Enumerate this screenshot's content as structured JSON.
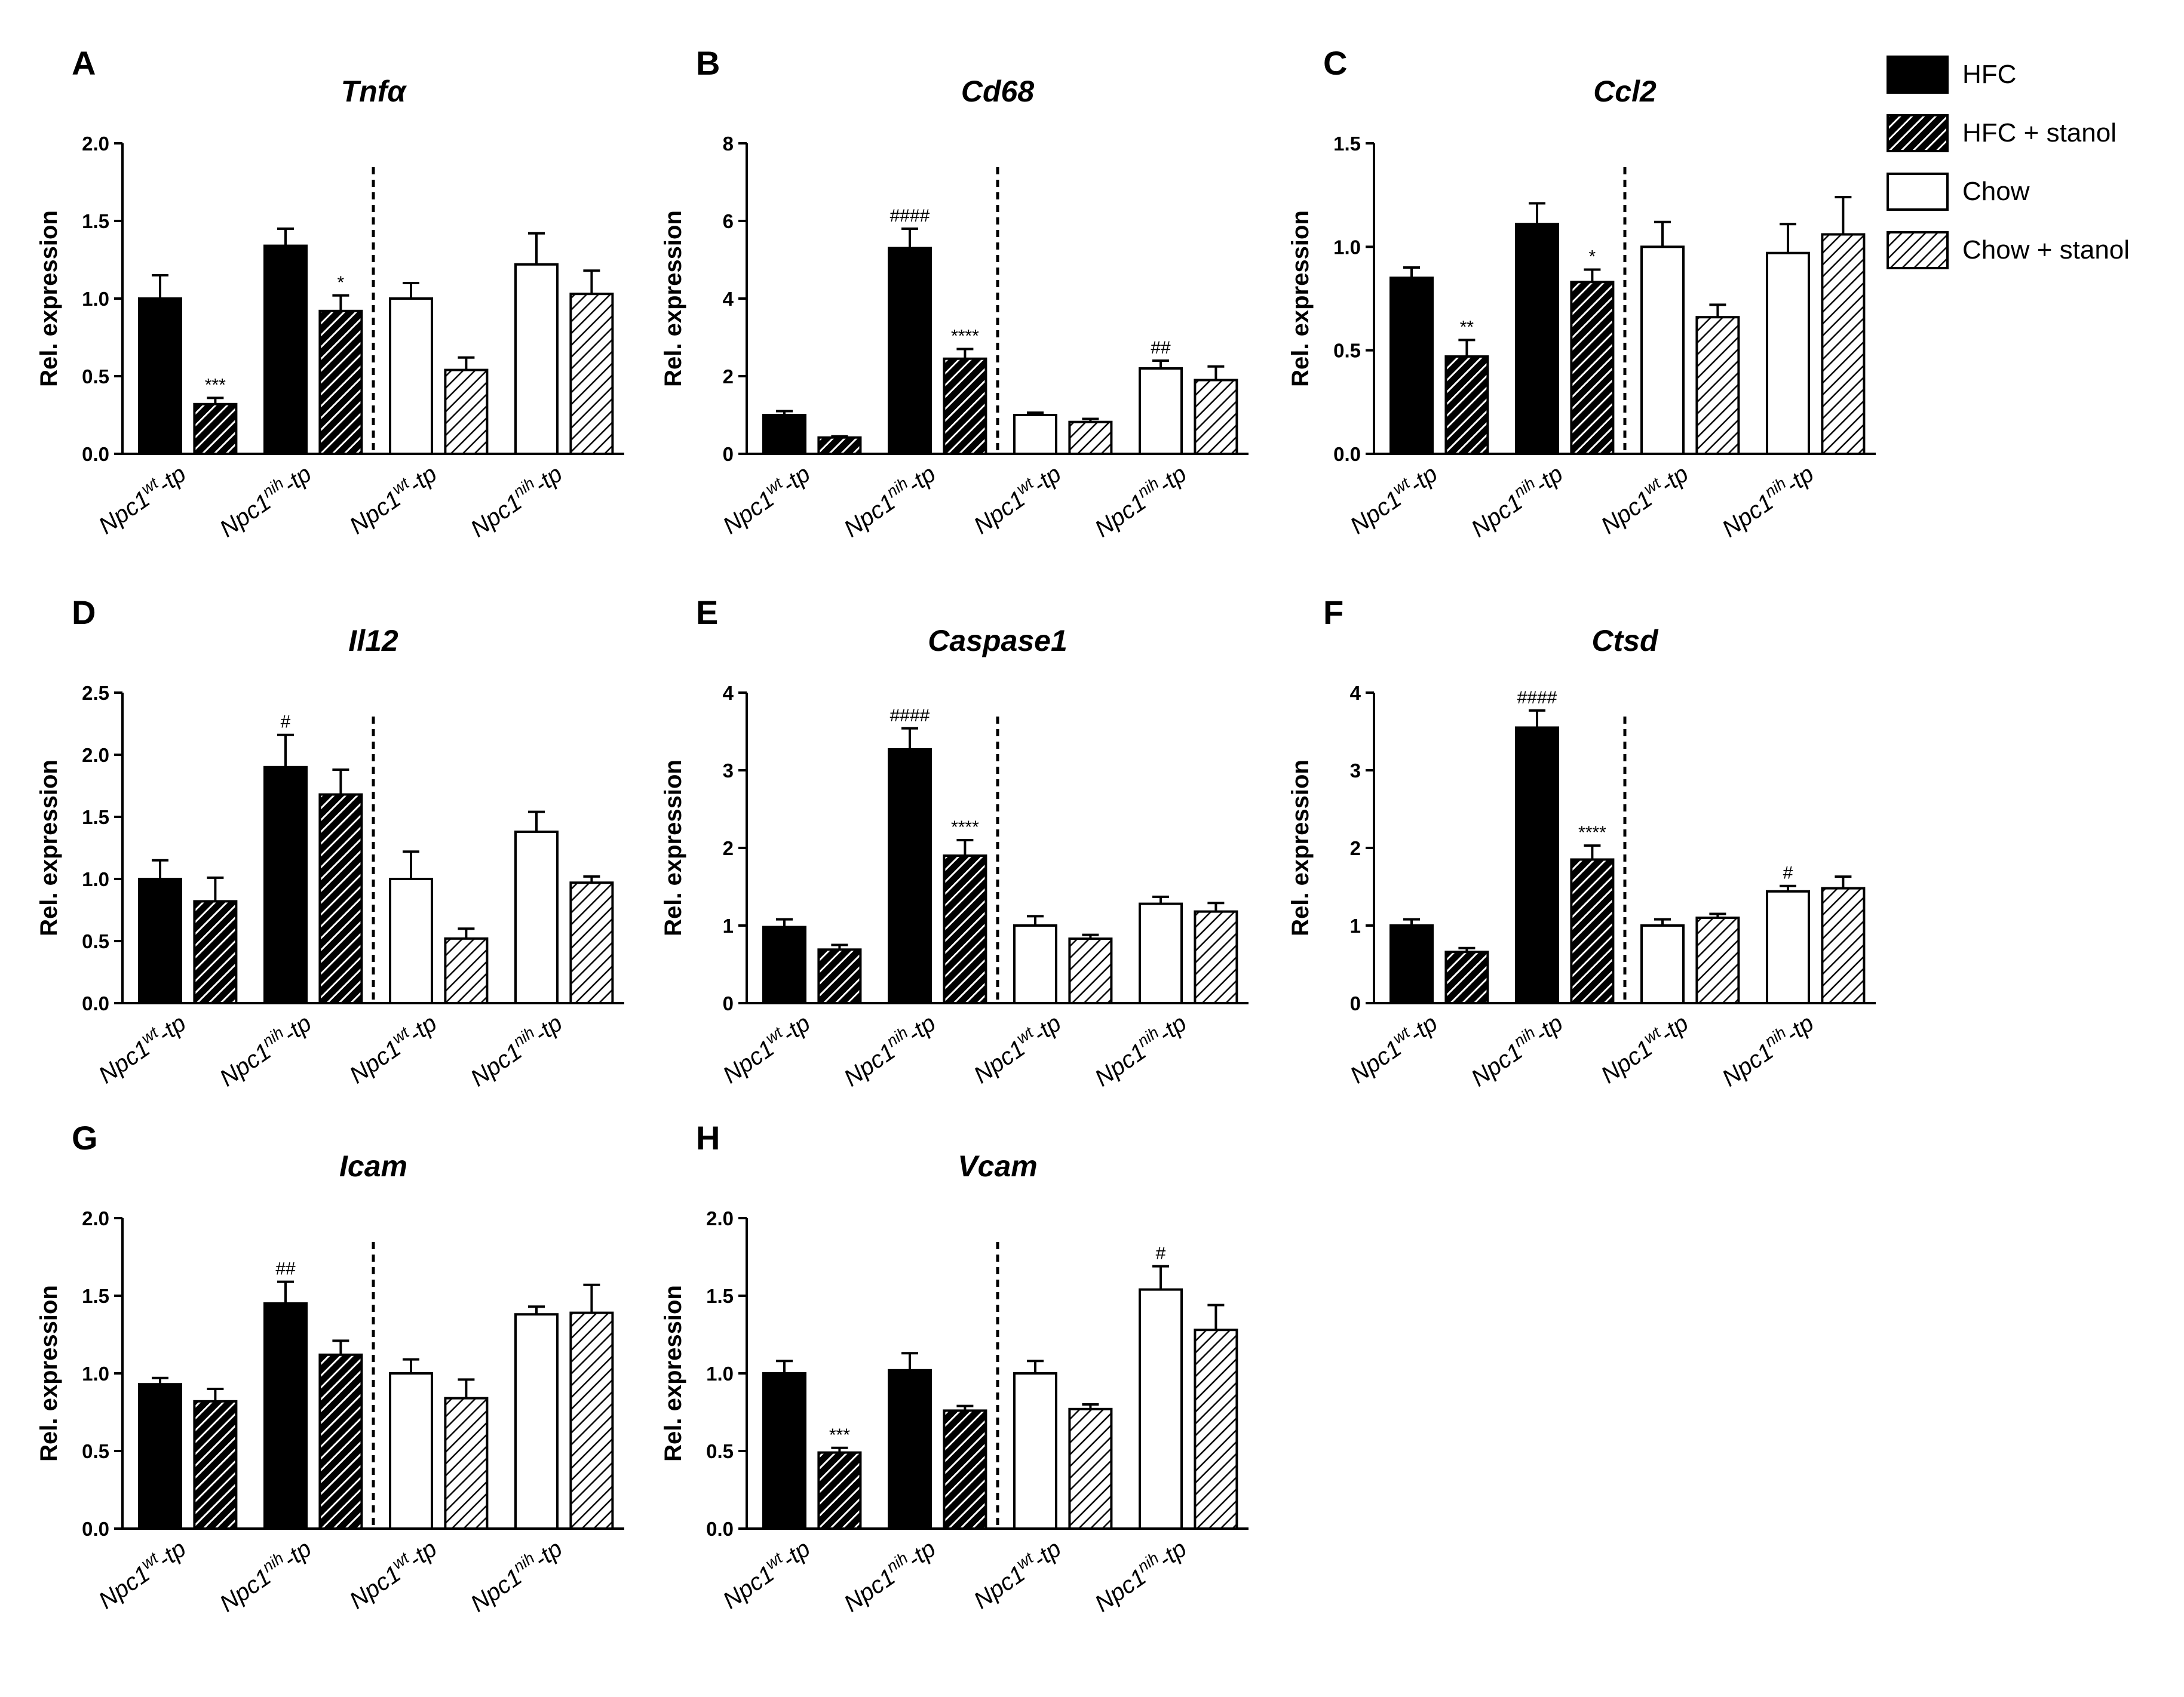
{
  "figure": {
    "legend": [
      {
        "key": "hfc",
        "label": "HFC"
      },
      {
        "key": "hfc_stanol",
        "label": "HFC + stanol"
      },
      {
        "key": "chow",
        "label": "Chow"
      },
      {
        "key": "chow_stanol",
        "label": "Chow + stanol"
      }
    ],
    "colors": {
      "black": "#000000",
      "white": "#ffffff"
    }
  },
  "chart_data": [
    {
      "type": "bar",
      "panel": "A",
      "title": "Tnfα",
      "ylabel": "Rel. expression",
      "categories": [
        {
          "base": "Npc1",
          "sup": "wt",
          "tail": "-tp"
        },
        {
          "base": "Npc1",
          "sup": "nih",
          "tail": "-tp"
        },
        {
          "base": "Npc1",
          "sup": "wt",
          "tail": "-tp"
        },
        {
          "base": "Npc1",
          "sup": "nih",
          "tail": "-tp"
        }
      ],
      "ylim": [
        0,
        2.0
      ],
      "yticks": [
        "0.0",
        "0.5",
        "1.0",
        "1.5",
        "2.0"
      ],
      "bars": [
        {
          "group": 0,
          "series": "HFC",
          "value": 1.0,
          "error": 0.15,
          "sig": ""
        },
        {
          "group": 0,
          "series": "HFC + stanol",
          "value": 0.32,
          "error": 0.04,
          "sig": "***"
        },
        {
          "group": 1,
          "series": "HFC",
          "value": 1.34,
          "error": 0.11,
          "sig": ""
        },
        {
          "group": 1,
          "series": "HFC + stanol",
          "value": 0.92,
          "error": 0.1,
          "sig": "*"
        },
        {
          "group": 2,
          "series": "Chow",
          "value": 1.0,
          "error": 0.1,
          "sig": ""
        },
        {
          "group": 2,
          "series": "Chow + stanol",
          "value": 0.54,
          "error": 0.08,
          "sig": ""
        },
        {
          "group": 3,
          "series": "Chow",
          "value": 1.22,
          "error": 0.2,
          "sig": ""
        },
        {
          "group": 3,
          "series": "Chow + stanol",
          "value": 1.03,
          "error": 0.15,
          "sig": ""
        }
      ]
    },
    {
      "type": "bar",
      "panel": "B",
      "title": "Cd68",
      "ylabel": "Rel. expression",
      "categories": [
        {
          "base": "Npc1",
          "sup": "wt",
          "tail": "-tp"
        },
        {
          "base": "Npc1",
          "sup": "nih",
          "tail": "-tp"
        },
        {
          "base": "Npc1",
          "sup": "wt",
          "tail": "-tp"
        },
        {
          "base": "Npc1",
          "sup": "nih",
          "tail": "-tp"
        }
      ],
      "ylim": [
        0,
        8
      ],
      "yticks": [
        "0",
        "2",
        "4",
        "6",
        "8"
      ],
      "bars": [
        {
          "group": 0,
          "series": "HFC",
          "value": 1.0,
          "error": 0.1,
          "sig": ""
        },
        {
          "group": 0,
          "series": "HFC + stanol",
          "value": 0.42,
          "error": 0.03,
          "sig": ""
        },
        {
          "group": 1,
          "series": "HFC",
          "value": 5.3,
          "error": 0.5,
          "sig": "####"
        },
        {
          "group": 1,
          "series": "HFC + stanol",
          "value": 2.45,
          "error": 0.25,
          "sig": "****"
        },
        {
          "group": 2,
          "series": "Chow",
          "value": 1.0,
          "error": 0.06,
          "sig": ""
        },
        {
          "group": 2,
          "series": "Chow + stanol",
          "value": 0.82,
          "error": 0.08,
          "sig": ""
        },
        {
          "group": 3,
          "series": "Chow",
          "value": 2.2,
          "error": 0.2,
          "sig": "##"
        },
        {
          "group": 3,
          "series": "Chow + stanol",
          "value": 1.9,
          "error": 0.35,
          "sig": ""
        }
      ]
    },
    {
      "type": "bar",
      "panel": "C",
      "title": "Ccl2",
      "ylabel": "Rel. expression",
      "categories": [
        {
          "base": "Npc1",
          "sup": "wt",
          "tail": "-tp"
        },
        {
          "base": "Npc1",
          "sup": "nih",
          "tail": "-tp"
        },
        {
          "base": "Npc1",
          "sup": "wt",
          "tail": "-tp"
        },
        {
          "base": "Npc1",
          "sup": "nih",
          "tail": "-tp"
        }
      ],
      "ylim": [
        0,
        1.5
      ],
      "yticks": [
        "0.0",
        "0.5",
        "1.0",
        "1.5"
      ],
      "bars": [
        {
          "group": 0,
          "series": "HFC",
          "value": 0.85,
          "error": 0.05,
          "sig": ""
        },
        {
          "group": 0,
          "series": "HFC + stanol",
          "value": 0.47,
          "error": 0.08,
          "sig": "**"
        },
        {
          "group": 1,
          "series": "HFC",
          "value": 1.11,
          "error": 0.1,
          "sig": ""
        },
        {
          "group": 1,
          "series": "HFC + stanol",
          "value": 0.83,
          "error": 0.06,
          "sig": "*"
        },
        {
          "group": 2,
          "series": "Chow",
          "value": 1.0,
          "error": 0.12,
          "sig": ""
        },
        {
          "group": 2,
          "series": "Chow + stanol",
          "value": 0.66,
          "error": 0.06,
          "sig": ""
        },
        {
          "group": 3,
          "series": "Chow",
          "value": 0.97,
          "error": 0.14,
          "sig": ""
        },
        {
          "group": 3,
          "series": "Chow + stanol",
          "value": 1.06,
          "error": 0.18,
          "sig": ""
        }
      ]
    },
    {
      "type": "bar",
      "panel": "D",
      "title": "Il12",
      "ylabel": "Rel. expression",
      "categories": [
        {
          "base": "Npc1",
          "sup": "wt",
          "tail": "-tp"
        },
        {
          "base": "Npc1",
          "sup": "nih",
          "tail": "-tp"
        },
        {
          "base": "Npc1",
          "sup": "wt",
          "tail": "-tp"
        },
        {
          "base": "Npc1",
          "sup": "nih",
          "tail": "-tp"
        }
      ],
      "ylim": [
        0,
        2.5
      ],
      "yticks": [
        "0.0",
        "0.5",
        "1.0",
        "1.5",
        "2.0",
        "2.5"
      ],
      "bars": [
        {
          "group": 0,
          "series": "HFC",
          "value": 1.0,
          "error": 0.15,
          "sig": ""
        },
        {
          "group": 0,
          "series": "HFC + stanol",
          "value": 0.82,
          "error": 0.19,
          "sig": ""
        },
        {
          "group": 1,
          "series": "HFC",
          "value": 1.9,
          "error": 0.26,
          "sig": "#"
        },
        {
          "group": 1,
          "series": "HFC + stanol",
          "value": 1.68,
          "error": 0.2,
          "sig": ""
        },
        {
          "group": 2,
          "series": "Chow",
          "value": 1.0,
          "error": 0.22,
          "sig": ""
        },
        {
          "group": 2,
          "series": "Chow + stanol",
          "value": 0.52,
          "error": 0.08,
          "sig": ""
        },
        {
          "group": 3,
          "series": "Chow",
          "value": 1.38,
          "error": 0.16,
          "sig": ""
        },
        {
          "group": 3,
          "series": "Chow + stanol",
          "value": 0.97,
          "error": 0.05,
          "sig": ""
        }
      ]
    },
    {
      "type": "bar",
      "panel": "E",
      "title": "Caspase1",
      "ylabel": "Rel. expression",
      "categories": [
        {
          "base": "Npc1",
          "sup": "wt",
          "tail": "-tp"
        },
        {
          "base": "Npc1",
          "sup": "nih",
          "tail": "-tp"
        },
        {
          "base": "Npc1",
          "sup": "wt",
          "tail": "-tp"
        },
        {
          "base": "Npc1",
          "sup": "nih",
          "tail": "-tp"
        }
      ],
      "ylim": [
        0,
        4
      ],
      "yticks": [
        "0",
        "1",
        "2",
        "3",
        "4"
      ],
      "bars": [
        {
          "group": 0,
          "series": "HFC",
          "value": 0.98,
          "error": 0.1,
          "sig": ""
        },
        {
          "group": 0,
          "series": "HFC + stanol",
          "value": 0.69,
          "error": 0.06,
          "sig": ""
        },
        {
          "group": 1,
          "series": "HFC",
          "value": 3.27,
          "error": 0.27,
          "sig": "####"
        },
        {
          "group": 1,
          "series": "HFC + stanol",
          "value": 1.9,
          "error": 0.2,
          "sig": "****"
        },
        {
          "group": 2,
          "series": "Chow",
          "value": 1.0,
          "error": 0.12,
          "sig": ""
        },
        {
          "group": 2,
          "series": "Chow + stanol",
          "value": 0.83,
          "error": 0.05,
          "sig": ""
        },
        {
          "group": 3,
          "series": "Chow",
          "value": 1.28,
          "error": 0.09,
          "sig": ""
        },
        {
          "group": 3,
          "series": "Chow + stanol",
          "value": 1.18,
          "error": 0.11,
          "sig": ""
        }
      ]
    },
    {
      "type": "bar",
      "panel": "F",
      "title": "Ctsd",
      "ylabel": "Rel. expression",
      "categories": [
        {
          "base": "Npc1",
          "sup": "wt",
          "tail": "-tp"
        },
        {
          "base": "Npc1",
          "sup": "nih",
          "tail": "-tp"
        },
        {
          "base": "Npc1",
          "sup": "wt",
          "tail": "-tp"
        },
        {
          "base": "Npc1",
          "sup": "nih",
          "tail": "-tp"
        }
      ],
      "ylim": [
        0,
        4
      ],
      "yticks": [
        "0",
        "1",
        "2",
        "3",
        "4"
      ],
      "bars": [
        {
          "group": 0,
          "series": "HFC",
          "value": 1.0,
          "error": 0.08,
          "sig": ""
        },
        {
          "group": 0,
          "series": "HFC + stanol",
          "value": 0.66,
          "error": 0.05,
          "sig": ""
        },
        {
          "group": 1,
          "series": "HFC",
          "value": 3.55,
          "error": 0.22,
          "sig": "####"
        },
        {
          "group": 1,
          "series": "HFC + stanol",
          "value": 1.85,
          "error": 0.18,
          "sig": "****"
        },
        {
          "group": 2,
          "series": "Chow",
          "value": 1.0,
          "error": 0.08,
          "sig": ""
        },
        {
          "group": 2,
          "series": "Chow + stanol",
          "value": 1.1,
          "error": 0.05,
          "sig": ""
        },
        {
          "group": 3,
          "series": "Chow",
          "value": 1.44,
          "error": 0.07,
          "sig": "#"
        },
        {
          "group": 3,
          "series": "Chow + stanol",
          "value": 1.48,
          "error": 0.15,
          "sig": ""
        }
      ]
    },
    {
      "type": "bar",
      "panel": "G",
      "title": "Icam",
      "ylabel": "Rel. expression",
      "categories": [
        {
          "base": "Npc1",
          "sup": "wt",
          "tail": "-tp"
        },
        {
          "base": "Npc1",
          "sup": "nih",
          "tail": "-tp"
        },
        {
          "base": "Npc1",
          "sup": "wt",
          "tail": "-tp"
        },
        {
          "base": "Npc1",
          "sup": "nih",
          "tail": "-tp"
        }
      ],
      "ylim": [
        0,
        2.0
      ],
      "yticks": [
        "0.0",
        "0.5",
        "1.0",
        "1.5",
        "2.0"
      ],
      "bars": [
        {
          "group": 0,
          "series": "HFC",
          "value": 0.93,
          "error": 0.04,
          "sig": ""
        },
        {
          "group": 0,
          "series": "HFC + stanol",
          "value": 0.82,
          "error": 0.08,
          "sig": ""
        },
        {
          "group": 1,
          "series": "HFC",
          "value": 1.45,
          "error": 0.14,
          "sig": "##"
        },
        {
          "group": 1,
          "series": "HFC + stanol",
          "value": 1.12,
          "error": 0.09,
          "sig": ""
        },
        {
          "group": 2,
          "series": "Chow",
          "value": 1.0,
          "error": 0.09,
          "sig": ""
        },
        {
          "group": 2,
          "series": "Chow + stanol",
          "value": 0.84,
          "error": 0.12,
          "sig": ""
        },
        {
          "group": 3,
          "series": "Chow",
          "value": 1.38,
          "error": 0.05,
          "sig": ""
        },
        {
          "group": 3,
          "series": "Chow + stanol",
          "value": 1.39,
          "error": 0.18,
          "sig": ""
        }
      ]
    },
    {
      "type": "bar",
      "panel": "H",
      "title": "Vcam",
      "ylabel": "Rel. expression",
      "categories": [
        {
          "base": "Npc1",
          "sup": "wt",
          "tail": "-tp"
        },
        {
          "base": "Npc1",
          "sup": "nih",
          "tail": "-tp"
        },
        {
          "base": "Npc1",
          "sup": "wt",
          "tail": "-tp"
        },
        {
          "base": "Npc1",
          "sup": "nih",
          "tail": "-tp"
        }
      ],
      "ylim": [
        0,
        2.0
      ],
      "yticks": [
        "0.0",
        "0.5",
        "1.0",
        "1.5",
        "2.0"
      ],
      "bars": [
        {
          "group": 0,
          "series": "HFC",
          "value": 1.0,
          "error": 0.08,
          "sig": ""
        },
        {
          "group": 0,
          "series": "HFC + stanol",
          "value": 0.49,
          "error": 0.03,
          "sig": "***"
        },
        {
          "group": 1,
          "series": "HFC",
          "value": 1.02,
          "error": 0.11,
          "sig": ""
        },
        {
          "group": 1,
          "series": "HFC + stanol",
          "value": 0.76,
          "error": 0.03,
          "sig": ""
        },
        {
          "group": 2,
          "series": "Chow",
          "value": 1.0,
          "error": 0.08,
          "sig": ""
        },
        {
          "group": 2,
          "series": "Chow + stanol",
          "value": 0.77,
          "error": 0.03,
          "sig": ""
        },
        {
          "group": 3,
          "series": "Chow",
          "value": 1.54,
          "error": 0.15,
          "sig": "#"
        },
        {
          "group": 3,
          "series": "Chow + stanol",
          "value": 1.28,
          "error": 0.16,
          "sig": ""
        }
      ]
    }
  ]
}
